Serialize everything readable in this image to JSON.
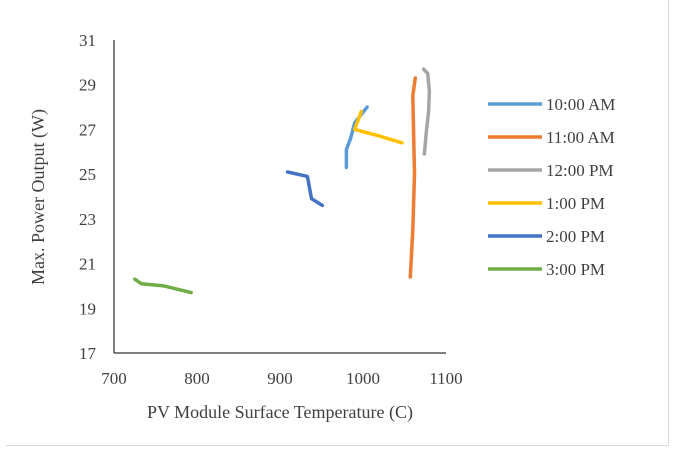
{
  "chart_data": {
    "type": "line",
    "title": "",
    "xlabel": "PV Module Surface Temperature (C)",
    "ylabel": "Max. Power Output (W)",
    "xlim": [
      700,
      1100
    ],
    "ylim": [
      17,
      31
    ],
    "xticks": [
      "700",
      "800",
      "900",
      "1000",
      "1100"
    ],
    "yticks": [
      "17",
      "19",
      "21",
      "23",
      "25",
      "27",
      "29",
      "31"
    ],
    "grid": false,
    "legend_position": "right",
    "series": [
      {
        "name": "10:00 AM",
        "color": "#5b9bd5",
        "x": [
          980,
          980,
          985,
          990,
          1005
        ],
        "y": [
          25.3,
          26.1,
          26.6,
          27.3,
          28.0
        ]
      },
      {
        "name": "11:00 AM",
        "color": "#ed7d31",
        "x": [
          1057,
          1060,
          1062,
          1060,
          1063
        ],
        "y": [
          20.4,
          22.5,
          25.0,
          28.5,
          29.3
        ]
      },
      {
        "name": "12:00 PM",
        "color": "#a5a5a5",
        "x": [
          1074,
          1076,
          1079,
          1080,
          1078,
          1073
        ],
        "y": [
          25.9,
          26.8,
          27.8,
          28.7,
          29.5,
          29.7
        ]
      },
      {
        "name": "1:00 PM",
        "color": "#ffc000",
        "x": [
          1047,
          1020,
          990,
          998
        ],
        "y": [
          26.4,
          26.7,
          27.0,
          27.8
        ]
      },
      {
        "name": "2:00 PM",
        "color": "#4472c4",
        "x": [
          909,
          933,
          938,
          951
        ],
        "y": [
          25.1,
          24.9,
          23.9,
          23.6
        ]
      },
      {
        "name": "3:00 PM",
        "color": "#70ad47",
        "x": [
          725,
          733,
          760,
          793
        ],
        "y": [
          20.3,
          20.1,
          20.0,
          19.7
        ]
      }
    ]
  }
}
